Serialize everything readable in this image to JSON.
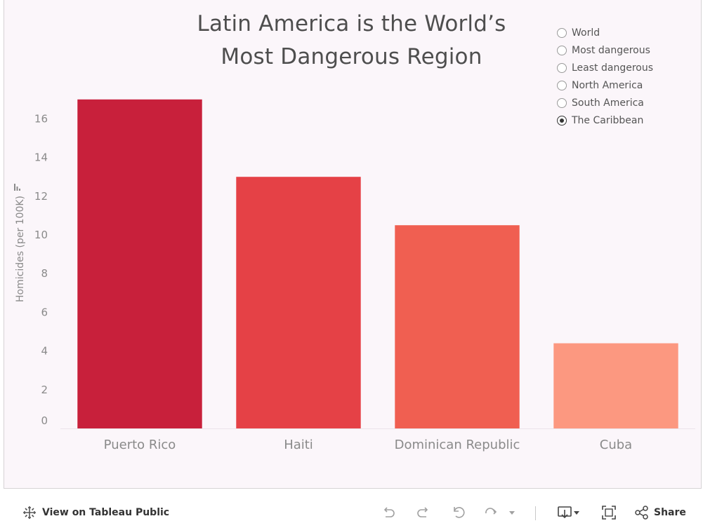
{
  "title_lines": [
    "Latin America is the World’s",
    "Most  Dangerous Region"
  ],
  "filter": {
    "options": [
      "World",
      "Most dangerous",
      "Least dangerous",
      "North America",
      "South America",
      "The Caribbean"
    ],
    "selected": "The Caribbean"
  },
  "chart_data": {
    "type": "bar",
    "title": "Latin America is the World’s Most  Dangerous Region",
    "xlabel": "",
    "ylabel": "Homicides (per 100K)",
    "categories": [
      "Puerto Rico",
      "Haiti",
      "Dominican Republic",
      "Cuba"
    ],
    "values": [
      17.0,
      13.0,
      10.5,
      4.4
    ],
    "bar_colors": [
      "#c8203b",
      "#e54146",
      "#f05f51",
      "#fc9880"
    ],
    "yticks": [
      0,
      2,
      4,
      6,
      8,
      10,
      12,
      14,
      16
    ],
    "ylim": [
      0,
      17
    ],
    "grid": false,
    "legend": "none"
  },
  "toolbar": {
    "view_label": "View on Tableau Public",
    "share_label": "Share",
    "icons": [
      "tableau-logo-icon",
      "undo-icon",
      "redo-icon",
      "revert-icon",
      "refresh-icon",
      "download-icon",
      "fullscreen-icon",
      "share-icon"
    ]
  },
  "colors": {
    "background": "#fbf6fa",
    "text": "#4e4e4e",
    "axis_text": "#8a8a8a"
  }
}
